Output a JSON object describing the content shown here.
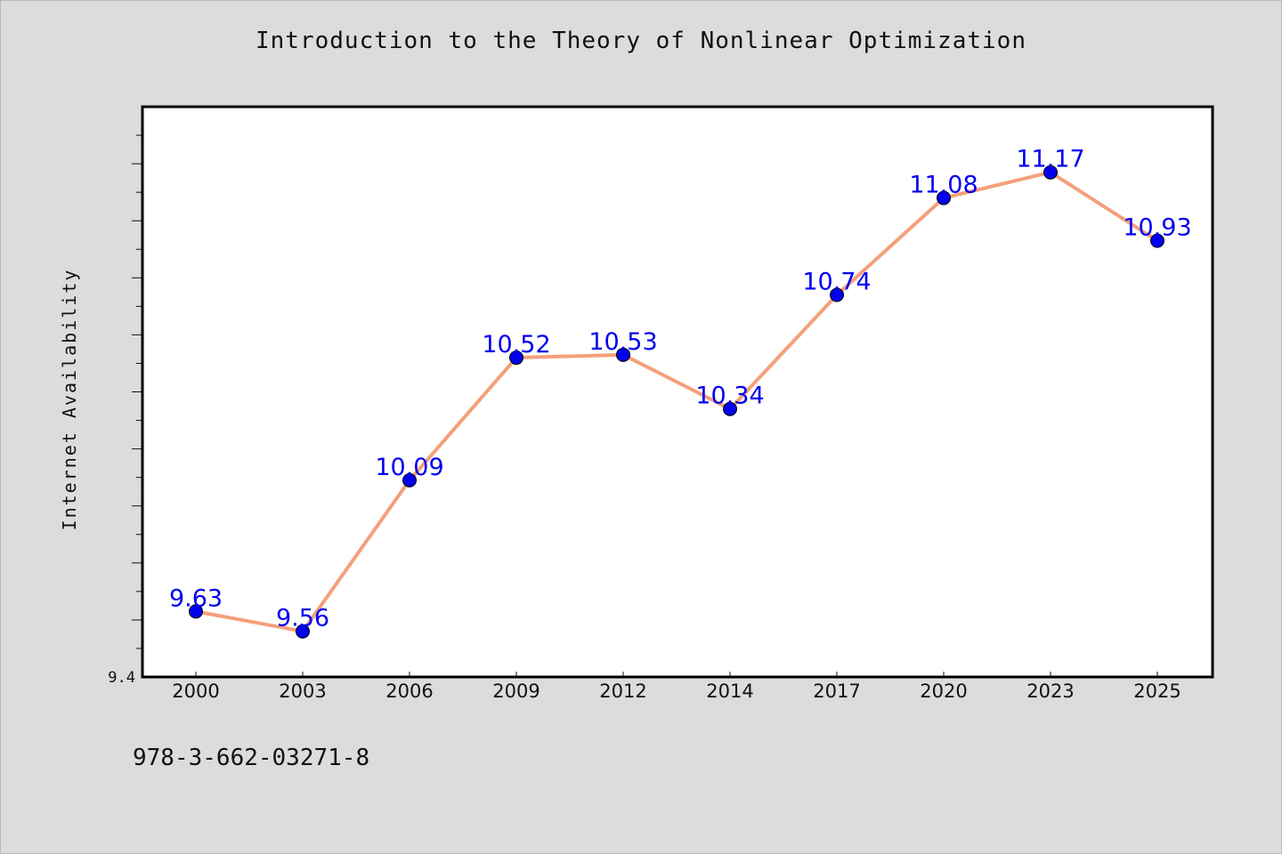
{
  "chart_data": {
    "type": "line",
    "title": "Introduction to the Theory of Nonlinear Optimization",
    "xlabel": "",
    "ylabel": "Internet Availability",
    "categories": [
      "2000",
      "2003",
      "2006",
      "2009",
      "2012",
      "2014",
      "2017",
      "2020",
      "2023",
      "2025"
    ],
    "values": [
      9.63,
      9.56,
      10.09,
      10.52,
      10.53,
      10.34,
      10.74,
      11.08,
      11.17,
      10.93
    ],
    "data_labels": [
      "9.63",
      "9.56",
      "10.09",
      "10.52",
      "10.53",
      "10.34",
      "10.74",
      "11.08",
      "11.17",
      "10.93"
    ],
    "ylim": [
      9.4,
      11.4
    ],
    "y_tick_labels": [
      "9.4"
    ],
    "grid": false,
    "line_color": "#f4a07a",
    "marker_color": "#0000ee",
    "label_color": "#0000ee"
  },
  "footer": {
    "isbn": "978-3-662-03271-8"
  }
}
